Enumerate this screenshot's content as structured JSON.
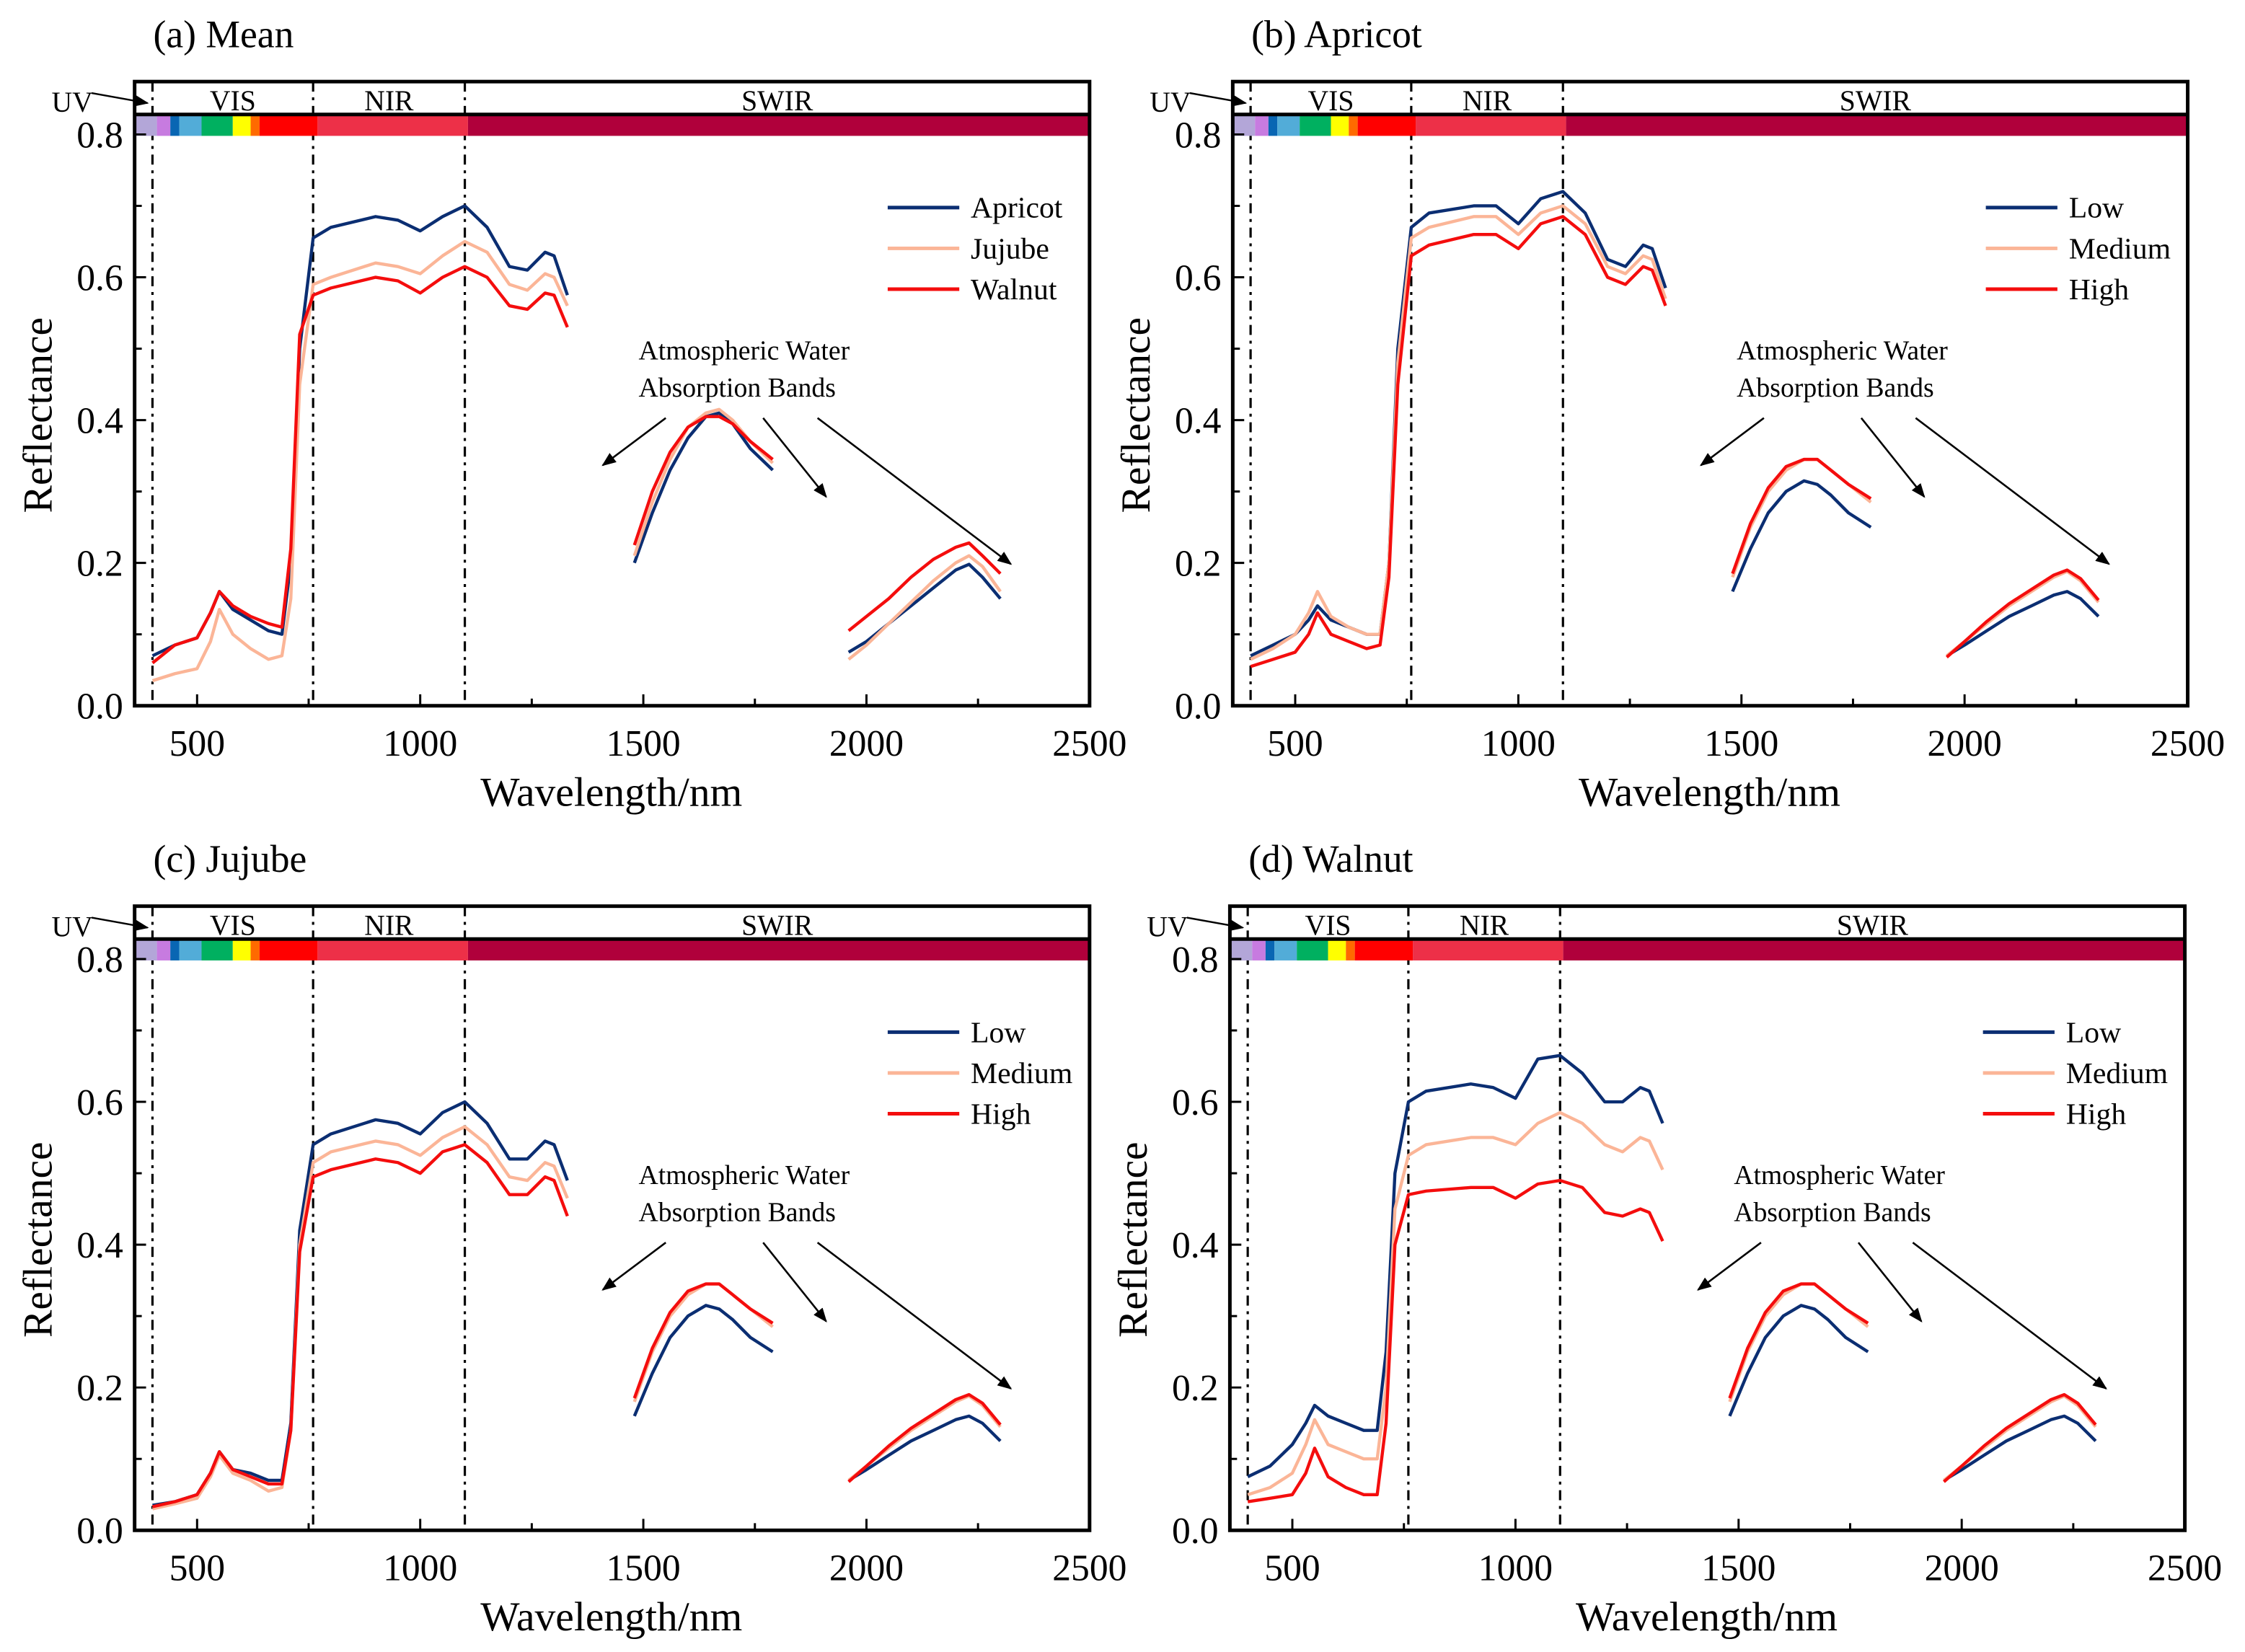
{
  "spectrum_bar": {
    "bands": [
      {
        "from": 360,
        "to": 410,
        "color": "#b3a6d8"
      },
      {
        "from": 410,
        "to": 440,
        "color": "#c77be0"
      },
      {
        "from": 440,
        "to": 460,
        "color": "#0966b3"
      },
      {
        "from": 460,
        "to": 510,
        "color": "#52acd8"
      },
      {
        "from": 510,
        "to": 580,
        "color": "#00b060"
      },
      {
        "from": 580,
        "to": 620,
        "color": "#ffff00"
      },
      {
        "from": 620,
        "to": 640,
        "color": "#ff6a00"
      },
      {
        "from": 640,
        "to": 770,
        "color": "#ff0000"
      },
      {
        "from": 770,
        "to": 1107,
        "color": "#ed3048"
      },
      {
        "from": 1107,
        "to": 2500,
        "color": "#b0003b"
      }
    ],
    "regions": [
      {
        "label": "VIS",
        "center": 580
      },
      {
        "label": "NIR",
        "center": 930
      },
      {
        "label": "SWIR",
        "center": 1800
      }
    ],
    "uv_label": "UV"
  },
  "chart_data": [
    {
      "type": "line",
      "title": "(a) Mean",
      "xlabel": "Wavelength/nm",
      "ylabel": "Reflectance",
      "xlim": [
        360,
        2500
      ],
      "ylim": [
        0,
        0.874
      ],
      "xticks": [
        500,
        1000,
        1500,
        2000,
        2500
      ],
      "yticks": [
        "0.0",
        "0.2",
        "0.4",
        "0.6",
        "0.8"
      ],
      "dividers": [
        400,
        760,
        1100
      ],
      "annotation": [
        "Atmospheric Water",
        "Absorption Bands"
      ],
      "segments_x": [
        [
          400,
          450,
          500,
          530,
          550,
          580,
          620,
          660,
          690,
          710,
          730,
          760,
          800,
          900,
          950,
          1000,
          1050,
          1100,
          1150,
          1200,
          1240,
          1280,
          1300,
          1330
        ],
        [
          1480,
          1520,
          1560,
          1600,
          1640,
          1670,
          1700,
          1740,
          1790
        ],
        [
          1960,
          2000,
          2050,
          2100,
          2150,
          2200,
          2230,
          2260,
          2300
        ]
      ],
      "series": [
        {
          "name": "Apricot",
          "color": "#0b2e72",
          "segments": [
            [
              0.07,
              0.085,
              0.095,
              0.13,
              0.16,
              0.135,
              0.12,
              0.105,
              0.1,
              0.2,
              0.5,
              0.655,
              0.67,
              0.685,
              0.68,
              0.665,
              0.685,
              0.7,
              0.67,
              0.615,
              0.61,
              0.635,
              0.63,
              0.575
            ],
            [
              0.2,
              0.27,
              0.33,
              0.375,
              0.405,
              0.41,
              0.395,
              0.36,
              0.33
            ],
            [
              0.075,
              0.09,
              0.115,
              0.14,
              0.165,
              0.19,
              0.198,
              0.18,
              0.15
            ]
          ]
        },
        {
          "name": "Jujube",
          "color": "#fbb597",
          "segments": [
            [
              0.035,
              0.045,
              0.052,
              0.09,
              0.135,
              0.1,
              0.08,
              0.065,
              0.07,
              0.15,
              0.45,
              0.59,
              0.6,
              0.62,
              0.615,
              0.605,
              0.63,
              0.65,
              0.635,
              0.59,
              0.582,
              0.605,
              0.6,
              0.56
            ],
            [
              0.21,
              0.285,
              0.345,
              0.39,
              0.41,
              0.415,
              0.4,
              0.37,
              0.34
            ],
            [
              0.065,
              0.085,
              0.115,
              0.145,
              0.175,
              0.2,
              0.21,
              0.195,
              0.16
            ]
          ]
        },
        {
          "name": "Walnut",
          "color": "#f40d0d",
          "segments": [
            [
              0.06,
              0.085,
              0.095,
              0.13,
              0.16,
              0.14,
              0.125,
              0.115,
              0.11,
              0.22,
              0.52,
              0.575,
              0.585,
              0.6,
              0.595,
              0.578,
              0.6,
              0.615,
              0.6,
              0.56,
              0.555,
              0.578,
              0.575,
              0.53
            ],
            [
              0.225,
              0.3,
              0.355,
              0.39,
              0.405,
              0.405,
              0.395,
              0.37,
              0.345
            ],
            [
              0.105,
              0.125,
              0.15,
              0.18,
              0.205,
              0.222,
              0.228,
              0.21,
              0.185
            ]
          ]
        }
      ]
    },
    {
      "type": "line",
      "title": "(b) Apricot",
      "xlabel": "Wavelength/nm",
      "ylabel": "Reflectance",
      "xlim": [
        360,
        2500
      ],
      "ylim": [
        0,
        0.874
      ],
      "xticks": [
        500,
        1000,
        1500,
        2000,
        2500
      ],
      "yticks": [
        "0.0",
        "0.2",
        "0.4",
        "0.6",
        "0.8"
      ],
      "dividers": [
        400,
        760,
        1100
      ],
      "annotation": [
        "Atmospheric Water",
        "Absorption Bands"
      ],
      "segments_x": [
        [
          400,
          450,
          500,
          530,
          550,
          580,
          620,
          660,
          690,
          710,
          730,
          760,
          800,
          900,
          950,
          1000,
          1050,
          1100,
          1150,
          1200,
          1240,
          1280,
          1300,
          1330
        ],
        [
          1480,
          1520,
          1560,
          1600,
          1640,
          1670,
          1700,
          1740,
          1790
        ],
        [
          1960,
          2000,
          2050,
          2100,
          2150,
          2200,
          2230,
          2260,
          2300
        ]
      ],
      "series": [
        {
          "name": "Low",
          "color": "#0b2e72",
          "segments": [
            [
              0.07,
              0.085,
              0.1,
              0.12,
              0.14,
              0.12,
              0.11,
              0.1,
              0.1,
              0.2,
              0.5,
              0.67,
              0.69,
              0.7,
              0.7,
              0.675,
              0.71,
              0.72,
              0.69,
              0.625,
              0.615,
              0.645,
              0.64,
              0.585
            ],
            [
              0.16,
              0.22,
              0.27,
              0.3,
              0.315,
              0.31,
              0.295,
              0.27,
              0.25
            ],
            [
              0.07,
              0.085,
              0.105,
              0.125,
              0.14,
              0.155,
              0.16,
              0.15,
              0.125
            ]
          ]
        },
        {
          "name": "Medium",
          "color": "#fbb597",
          "segments": [
            [
              0.065,
              0.08,
              0.1,
              0.13,
              0.16,
              0.125,
              0.11,
              0.1,
              0.1,
              0.2,
              0.48,
              0.655,
              0.67,
              0.685,
              0.685,
              0.66,
              0.69,
              0.7,
              0.675,
              0.615,
              0.605,
              0.63,
              0.625,
              0.57
            ],
            [
              0.18,
              0.25,
              0.3,
              0.33,
              0.345,
              0.345,
              0.33,
              0.31,
              0.285
            ],
            [
              0.07,
              0.09,
              0.115,
              0.14,
              0.16,
              0.18,
              0.188,
              0.175,
              0.145
            ]
          ]
        },
        {
          "name": "High",
          "color": "#f40d0d",
          "segments": [
            [
              0.055,
              0.065,
              0.075,
              0.1,
              0.13,
              0.1,
              0.09,
              0.08,
              0.085,
              0.18,
              0.45,
              0.63,
              0.645,
              0.66,
              0.66,
              0.64,
              0.675,
              0.685,
              0.66,
              0.6,
              0.59,
              0.615,
              0.61,
              0.56
            ],
            [
              0.185,
              0.255,
              0.305,
              0.335,
              0.345,
              0.345,
              0.33,
              0.31,
              0.29
            ],
            [
              0.068,
              0.09,
              0.118,
              0.143,
              0.163,
              0.183,
              0.19,
              0.178,
              0.148
            ]
          ]
        }
      ]
    },
    {
      "type": "line",
      "title": "(c) Jujube",
      "xlabel": "Wavelength/nm",
      "ylabel": "Reflectance",
      "xlim": [
        360,
        2500
      ],
      "ylim": [
        0,
        0.874
      ],
      "xticks": [
        500,
        1000,
        1500,
        2000,
        2500
      ],
      "yticks": [
        "0.0",
        "0.2",
        "0.4",
        "0.6",
        "0.8"
      ],
      "dividers": [
        400,
        760,
        1100
      ],
      "annotation": [
        "Atmospheric Water",
        "Absorption Bands"
      ],
      "segments_x": [
        [
          400,
          450,
          500,
          530,
          550,
          580,
          620,
          660,
          690,
          710,
          730,
          760,
          800,
          900,
          950,
          1000,
          1050,
          1100,
          1150,
          1200,
          1240,
          1280,
          1300,
          1330
        ],
        [
          1480,
          1520,
          1560,
          1600,
          1640,
          1670,
          1700,
          1740,
          1790
        ],
        [
          1960,
          2000,
          2050,
          2100,
          2150,
          2200,
          2230,
          2260,
          2300
        ]
      ],
      "series": [
        {
          "name": "Low",
          "color": "#0b2e72",
          "segments": [
            [
              0.035,
              0.04,
              0.05,
              0.08,
              0.11,
              0.085,
              0.08,
              0.07,
              0.07,
              0.15,
              0.42,
              0.54,
              0.555,
              0.575,
              0.57,
              0.555,
              0.585,
              0.6,
              0.57,
              0.52,
              0.52,
              0.545,
              0.54,
              0.49
            ],
            [
              0.16,
              0.22,
              0.27,
              0.3,
              0.315,
              0.31,
              0.295,
              0.27,
              0.25
            ],
            [
              0.07,
              0.085,
              0.105,
              0.125,
              0.14,
              0.155,
              0.16,
              0.15,
              0.125
            ]
          ]
        },
        {
          "name": "Medium",
          "color": "#fbb597",
          "segments": [
            [
              0.03,
              0.037,
              0.045,
              0.075,
              0.105,
              0.08,
              0.07,
              0.055,
              0.06,
              0.14,
              0.4,
              0.515,
              0.53,
              0.545,
              0.54,
              0.525,
              0.55,
              0.565,
              0.54,
              0.495,
              0.49,
              0.515,
              0.51,
              0.465
            ],
            [
              0.18,
              0.25,
              0.3,
              0.33,
              0.345,
              0.345,
              0.33,
              0.31,
              0.285
            ],
            [
              0.07,
              0.09,
              0.115,
              0.14,
              0.16,
              0.18,
              0.188,
              0.175,
              0.145
            ]
          ]
        },
        {
          "name": "High",
          "color": "#f40d0d",
          "segments": [
            [
              0.033,
              0.04,
              0.05,
              0.08,
              0.11,
              0.085,
              0.075,
              0.065,
              0.065,
              0.14,
              0.39,
              0.495,
              0.505,
              0.52,
              0.515,
              0.5,
              0.53,
              0.54,
              0.515,
              0.47,
              0.47,
              0.495,
              0.49,
              0.44
            ],
            [
              0.185,
              0.255,
              0.305,
              0.335,
              0.345,
              0.345,
              0.33,
              0.31,
              0.29
            ],
            [
              0.068,
              0.09,
              0.118,
              0.143,
              0.163,
              0.183,
              0.19,
              0.178,
              0.148
            ]
          ]
        }
      ]
    },
    {
      "type": "line",
      "title": "(d) Walnut",
      "xlabel": "Wavelength/nm",
      "ylabel": "Reflectance",
      "xlim": [
        360,
        2500
      ],
      "ylim": [
        0,
        0.874
      ],
      "xticks": [
        500,
        1000,
        1500,
        2000,
        2500
      ],
      "yticks": [
        "0.0",
        "0.2",
        "0.4",
        "0.6",
        "0.8"
      ],
      "dividers": [
        400,
        760,
        1100
      ],
      "annotation": [
        "Atmospheric Water",
        "Absorption Bands"
      ],
      "segments_x": [
        [
          400,
          450,
          500,
          530,
          550,
          580,
          620,
          660,
          690,
          710,
          730,
          760,
          800,
          900,
          950,
          1000,
          1050,
          1100,
          1150,
          1200,
          1240,
          1280,
          1300,
          1330
        ],
        [
          1480,
          1520,
          1560,
          1600,
          1640,
          1670,
          1700,
          1740,
          1790
        ],
        [
          1960,
          2000,
          2050,
          2100,
          2150,
          2200,
          2230,
          2260,
          2300
        ]
      ],
      "series": [
        {
          "name": "Low",
          "color": "#0b2e72",
          "segments": [
            [
              0.075,
              0.09,
              0.12,
              0.15,
              0.175,
              0.16,
              0.15,
              0.14,
              0.14,
              0.25,
              0.5,
              0.6,
              0.615,
              0.625,
              0.62,
              0.605,
              0.66,
              0.665,
              0.64,
              0.6,
              0.6,
              0.62,
              0.615,
              0.57
            ],
            [
              0.16,
              0.22,
              0.27,
              0.3,
              0.315,
              0.31,
              0.295,
              0.27,
              0.25
            ],
            [
              0.07,
              0.085,
              0.105,
              0.125,
              0.14,
              0.155,
              0.16,
              0.15,
              0.125
            ]
          ]
        },
        {
          "name": "Medium",
          "color": "#fbb597",
          "segments": [
            [
              0.05,
              0.06,
              0.08,
              0.12,
              0.155,
              0.12,
              0.11,
              0.1,
              0.1,
              0.2,
              0.45,
              0.525,
              0.54,
              0.55,
              0.55,
              0.54,
              0.57,
              0.585,
              0.57,
              0.54,
              0.53,
              0.55,
              0.545,
              0.505
            ],
            [
              0.18,
              0.25,
              0.3,
              0.33,
              0.345,
              0.345,
              0.33,
              0.31,
              0.285
            ],
            [
              0.07,
              0.09,
              0.115,
              0.14,
              0.16,
              0.18,
              0.188,
              0.175,
              0.145
            ]
          ]
        },
        {
          "name": "High",
          "color": "#f40d0d",
          "segments": [
            [
              0.04,
              0.045,
              0.05,
              0.08,
              0.115,
              0.075,
              0.06,
              0.05,
              0.05,
              0.15,
              0.4,
              0.47,
              0.475,
              0.48,
              0.48,
              0.465,
              0.485,
              0.49,
              0.48,
              0.445,
              0.44,
              0.45,
              0.445,
              0.405
            ],
            [
              0.185,
              0.255,
              0.305,
              0.335,
              0.345,
              0.345,
              0.33,
              0.31,
              0.29
            ],
            [
              0.068,
              0.09,
              0.118,
              0.143,
              0.163,
              0.183,
              0.19,
              0.178,
              0.148
            ]
          ]
        }
      ]
    }
  ]
}
